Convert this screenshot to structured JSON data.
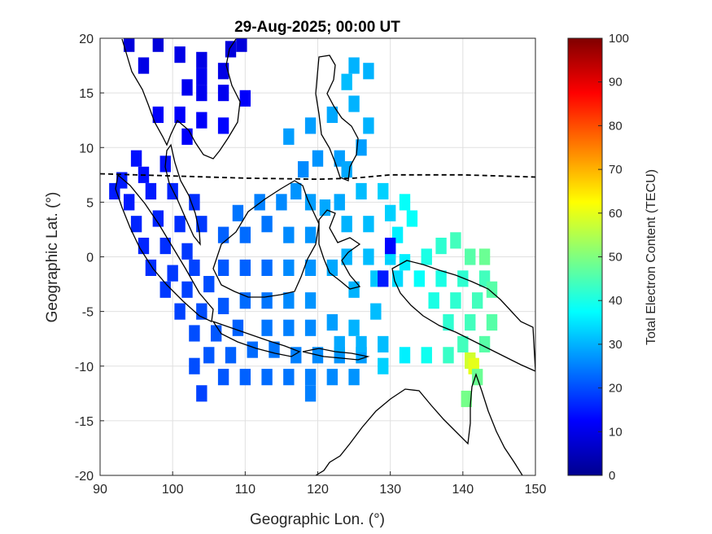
{
  "chart_data": {
    "type": "heatmap",
    "title": "29-Aug-2025; 00:00 UT",
    "xlabel": "Geographic Lon. (°)",
    "ylabel": "Geographic Lat. (°)",
    "xlim": [
      90,
      150
    ],
    "ylim": [
      -20,
      20
    ],
    "xticks": [
      90,
      100,
      110,
      120,
      130,
      140,
      150
    ],
    "yticks": [
      -20,
      -15,
      -10,
      -5,
      0,
      5,
      10,
      15,
      20
    ],
    "grid": true,
    "colorbar": {
      "label": "Total Electron Content (TECU)",
      "range": [
        0,
        100
      ],
      "ticks": [
        0,
        10,
        20,
        30,
        40,
        50,
        60,
        70,
        80,
        90,
        100
      ],
      "colormap": "jet",
      "position": "right"
    },
    "magnetic_equator": [
      [
        90,
        7.6
      ],
      [
        100,
        7.4
      ],
      [
        110,
        7.2
      ],
      [
        120,
        7.1
      ],
      [
        125,
        7.2
      ],
      [
        130,
        7.5
      ],
      [
        140,
        7.5
      ],
      [
        150,
        7.3
      ]
    ],
    "tec_points": [
      [
        94,
        19.5,
        9
      ],
      [
        98,
        19.5,
        9
      ],
      [
        101,
        18.5,
        10
      ],
      [
        104,
        18,
        10
      ],
      [
        108,
        19,
        9
      ],
      [
        109.5,
        19.5,
        9
      ],
      [
        96,
        17.5,
        10
      ],
      [
        104,
        16.5,
        11
      ],
      [
        107,
        17,
        10
      ],
      [
        102,
        15.5,
        11
      ],
      [
        104,
        15,
        11
      ],
      [
        107,
        15,
        11
      ],
      [
        110,
        14.5,
        12
      ],
      [
        98,
        13,
        12
      ],
      [
        101,
        13,
        12
      ],
      [
        104,
        12.5,
        12
      ],
      [
        107,
        12,
        13
      ],
      [
        102,
        11,
        12
      ],
      [
        95,
        9,
        14
      ],
      [
        99,
        8.5,
        14
      ],
      [
        96,
        7.5,
        14
      ],
      [
        93,
        7,
        15
      ],
      [
        92,
        6,
        15
      ],
      [
        94,
        5,
        15
      ],
      [
        97,
        6,
        15
      ],
      [
        100,
        6,
        16
      ],
      [
        103,
        5,
        17
      ],
      [
        95,
        3,
        16
      ],
      [
        98,
        3.5,
        16
      ],
      [
        101,
        3,
        17
      ],
      [
        104,
        3,
        18
      ],
      [
        96,
        1,
        16
      ],
      [
        99,
        1,
        17
      ],
      [
        102,
        0.5,
        18
      ],
      [
        97,
        -1,
        17
      ],
      [
        100,
        -1.5,
        18
      ],
      [
        103,
        -1,
        19
      ],
      [
        99,
        -3,
        18
      ],
      [
        102,
        -3,
        19
      ],
      [
        105,
        -2.5,
        20
      ],
      [
        101,
        -5,
        19
      ],
      [
        104,
        -5,
        20
      ],
      [
        107,
        -4.5,
        21
      ],
      [
        103,
        -7,
        20
      ],
      [
        106,
        -7,
        21
      ],
      [
        109,
        -6.5,
        22
      ],
      [
        105,
        -9,
        21
      ],
      [
        108,
        -9,
        22
      ],
      [
        111,
        -8.5,
        23
      ],
      [
        114,
        -8.5,
        24
      ],
      [
        117,
        -9,
        25
      ],
      [
        120,
        -9,
        26
      ],
      [
        123,
        -9,
        27
      ],
      [
        126,
        -9,
        28
      ],
      [
        103,
        -10,
        20
      ],
      [
        107,
        -11,
        21
      ],
      [
        104,
        -12.5,
        19
      ],
      [
        110,
        -11,
        22
      ],
      [
        113,
        -11,
        23
      ],
      [
        116,
        -11,
        24
      ],
      [
        119,
        -11,
        25
      ],
      [
        122,
        -11,
        26
      ],
      [
        125,
        -11,
        27
      ],
      [
        119,
        -12.5,
        25
      ],
      [
        107,
        -1,
        21
      ],
      [
        110,
        -1,
        22
      ],
      [
        113,
        -1,
        23
      ],
      [
        107,
        2,
        22
      ],
      [
        110,
        2,
        23
      ],
      [
        113,
        3,
        24
      ],
      [
        109,
        4,
        24
      ],
      [
        112,
        5,
        25
      ],
      [
        115,
        5,
        26
      ],
      [
        117,
        6,
        27
      ],
      [
        119,
        5,
        28
      ],
      [
        121,
        4.5,
        29
      ],
      [
        116,
        2,
        26
      ],
      [
        119,
        2,
        27
      ],
      [
        116,
        -1,
        26
      ],
      [
        119,
        -1,
        27
      ],
      [
        122,
        -1,
        29
      ],
      [
        110,
        -4,
        23
      ],
      [
        113,
        -4,
        24
      ],
      [
        116,
        -4,
        26
      ],
      [
        119,
        -4,
        27
      ],
      [
        113,
        -6.5,
        24
      ],
      [
        116,
        -6.5,
        25
      ],
      [
        119,
        -6.5,
        26
      ],
      [
        122,
        -6,
        28
      ],
      [
        125,
        -6.5,
        30
      ],
      [
        128,
        -5,
        31
      ],
      [
        125,
        -3,
        30
      ],
      [
        128,
        -2,
        32
      ],
      [
        131,
        -2,
        34
      ],
      [
        129,
        -8,
        31
      ],
      [
        126,
        -8,
        30
      ],
      [
        123,
        -8,
        29
      ],
      [
        124,
        0,
        30
      ],
      [
        127,
        0,
        31
      ],
      [
        130,
        0,
        33
      ],
      [
        124,
        3,
        30
      ],
      [
        127,
        3,
        31
      ],
      [
        130,
        4,
        33
      ],
      [
        131,
        2,
        36
      ],
      [
        123,
        5,
        29
      ],
      [
        126,
        6,
        31
      ],
      [
        129,
        6,
        33
      ],
      [
        132,
        5,
        38
      ],
      [
        133,
        3.5,
        38
      ],
      [
        120,
        9,
        27
      ],
      [
        123,
        9,
        28
      ],
      [
        126,
        10,
        28
      ],
      [
        124,
        8,
        29
      ],
      [
        118,
        8,
        26
      ],
      [
        116,
        11,
        28
      ],
      [
        119,
        12,
        28
      ],
      [
        122,
        13,
        29
      ],
      [
        125,
        14,
        30
      ],
      [
        127,
        12,
        30
      ],
      [
        124,
        16,
        31
      ],
      [
        127,
        17,
        30
      ],
      [
        125,
        17.5,
        30
      ],
      [
        130,
        0.5,
        34
      ],
      [
        132,
        -0.5,
        36
      ],
      [
        135,
        0,
        40
      ],
      [
        137,
        1,
        42
      ],
      [
        139,
        1.5,
        44
      ],
      [
        141,
        0,
        46
      ],
      [
        143,
        0,
        48
      ],
      [
        134,
        -2,
        38
      ],
      [
        137,
        -2,
        40
      ],
      [
        140,
        -2,
        42
      ],
      [
        143,
        -2,
        44
      ],
      [
        136,
        -4,
        40
      ],
      [
        139,
        -4,
        42
      ],
      [
        142,
        -4,
        44
      ],
      [
        144,
        -3,
        46
      ],
      [
        138,
        -6,
        42
      ],
      [
        141,
        -6,
        44
      ],
      [
        144,
        -6,
        46
      ],
      [
        140,
        -8,
        44
      ],
      [
        143,
        -8,
        46
      ],
      [
        138,
        -9,
        43
      ],
      [
        141,
        -9.5,
        58
      ],
      [
        141.5,
        -10,
        60
      ],
      [
        142,
        -11,
        48
      ],
      [
        140.5,
        -13,
        49
      ],
      [
        135,
        -9,
        39
      ],
      [
        132,
        -9,
        36
      ],
      [
        129,
        -10,
        33
      ],
      [
        130,
        1,
        13
      ],
      [
        129,
        -2,
        15
      ]
    ],
    "coastline_note": "land outlines"
  }
}
